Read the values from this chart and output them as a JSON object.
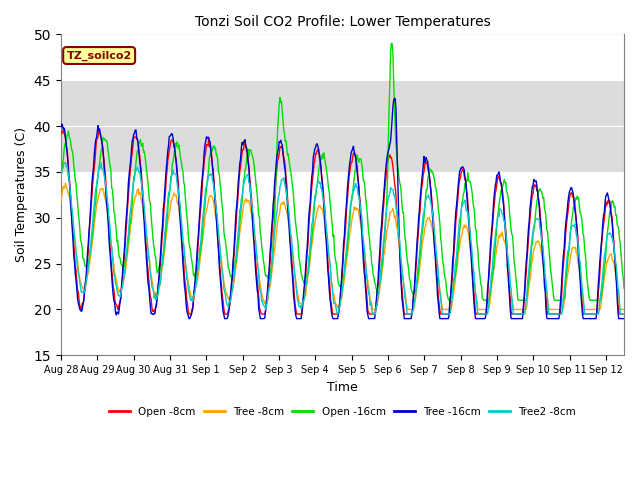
{
  "title": "Tonzi Soil CO2 Profile: Lower Temperatures",
  "ylabel": "Soil Temperatures (C)",
  "xlabel": "Time",
  "ylim": [
    15,
    50
  ],
  "yticks": [
    15,
    20,
    25,
    30,
    35,
    40,
    45,
    50
  ],
  "legend_title": "TZ_soilco2",
  "lines": [
    {
      "label": "Open -8cm",
      "color": "#FF0000"
    },
    {
      "label": "Tree -8cm",
      "color": "#FFA500"
    },
    {
      "label": "Open -16cm",
      "color": "#00DD00"
    },
    {
      "label": "Tree -16cm",
      "color": "#0000CC"
    },
    {
      "label": "Tree2 -8cm",
      "color": "#00CCCC"
    }
  ],
  "shaded_band": [
    35,
    45
  ],
  "shaded_color": "#DCDCDC",
  "n_days": 15.5,
  "samples_per_day": 48,
  "background_color": "#FFFFFF",
  "axes_facecolor": "#FFFFFF",
  "tick_labels": [
    "Aug 28",
    "Aug 29",
    "Aug 30",
    "Aug 31",
    "Sep 1",
    "Sep 2",
    "Sep 3",
    "Sep 4",
    "Sep 5",
    "Sep 6",
    "Sep 7",
    "Sep 8",
    "Sep 9",
    "Sep 10",
    "Sep 11",
    "Sep 12"
  ]
}
